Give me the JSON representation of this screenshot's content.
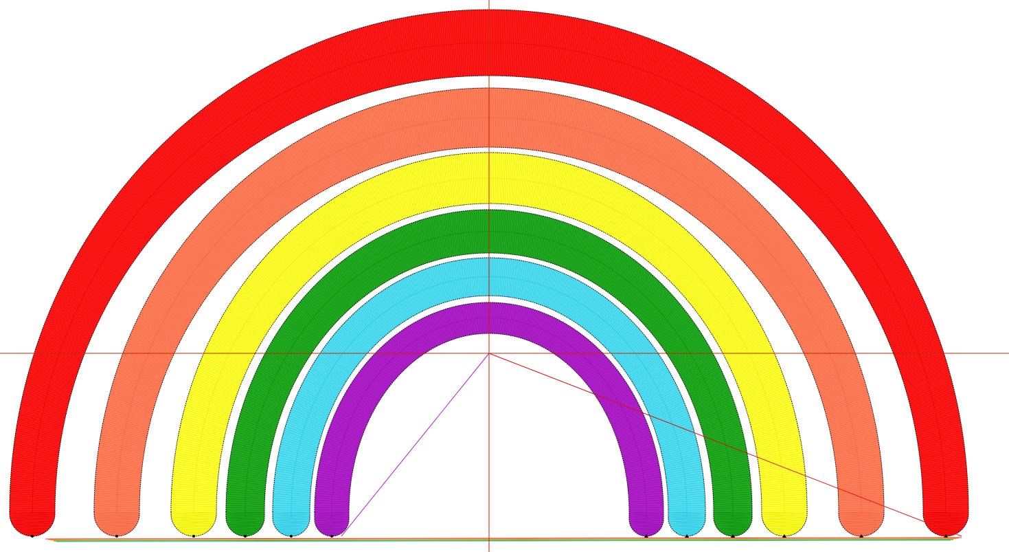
{
  "design": {
    "bands": [
      {
        "name": "red",
        "color": "#ff1a1a",
        "stitch": "#e00000"
      },
      {
        "name": "salmon",
        "color": "#ff7f5a",
        "stitch": "#f06040"
      },
      {
        "name": "yellow",
        "color": "#ffff33",
        "stitch": "#e6e600"
      },
      {
        "name": "green",
        "color": "#22aa22",
        "stitch": "#0a8a0a"
      },
      {
        "name": "cyan",
        "color": "#55ddf0",
        "stitch": "#22c4e0"
      },
      {
        "name": "purple",
        "color": "#b020c8",
        "stitch": "#9010b0"
      }
    ],
    "crosshair_color": "#cc2200",
    "outline_color": "#000000"
  }
}
